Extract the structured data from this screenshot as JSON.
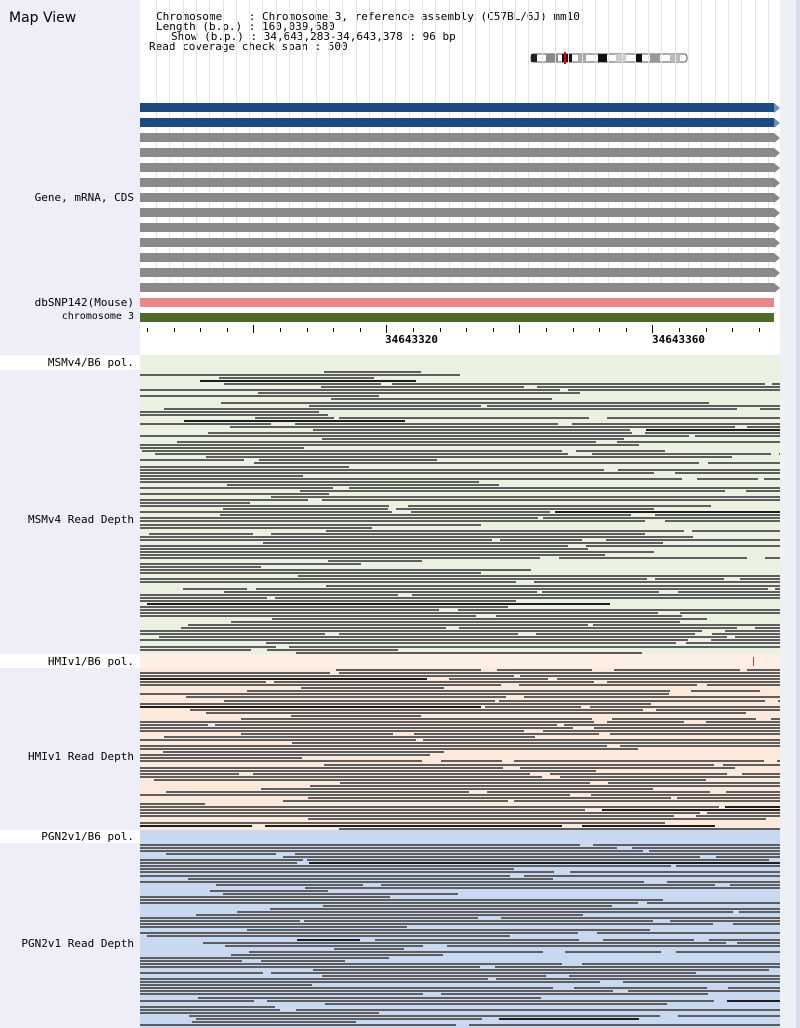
{
  "map_title": "Map View",
  "info": {
    "chromosome_line": "Chromosome    : Chromosome 3, reference assembly (C57BL/6J) mm10",
    "length_line": "Length (b.p.) : 160,039,680",
    "show_line": "Show (b.p.) : 34,643,283-34,643,378 : 96 bp",
    "coverage_line": "Read coverage check span : 500"
  },
  "labels": {
    "gene": "Gene, mRNA, CDS",
    "dbsnp": "dbSNP142(Mouse)",
    "chromosome": "chromosome 3",
    "msm_pol": "MSMv4/B6 pol.",
    "msm_depth": "MSMv4 Read Depth",
    "hmi_pol": "HMIv1/B6 pol.",
    "hmi_depth": "HMIv1 Read Depth",
    "pgn_pol": "PGN2v1/B6 pol.",
    "pgn_depth": "PGN2v1 Read Depth"
  },
  "ruler": {
    "label_1": "34643320",
    "label_2": "34643360"
  },
  "colors": {
    "gene_blue": "#1e4a7e",
    "gene_gray": "#8a8a8a",
    "dbsnp": "#e8868a",
    "chromosome": "#4e6a26",
    "msm_bg": "#eaf1e0",
    "hmi_bg": "#fde8dc",
    "pgn_bg": "#c8d8f0",
    "read": "#5e5e5e"
  }
}
